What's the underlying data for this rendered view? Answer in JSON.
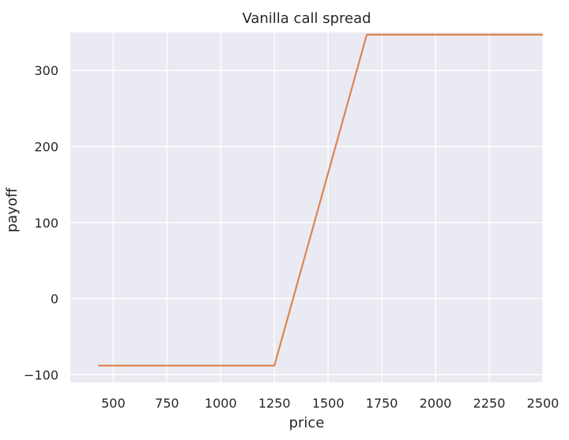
{
  "chart_data": {
    "type": "line",
    "title": "Vanilla call spread",
    "xlabel": "price",
    "ylabel": "payoff",
    "xlim": [
      300,
      2500
    ],
    "ylim": [
      -110,
      350
    ],
    "xticks": [
      500,
      750,
      1000,
      1250,
      1500,
      1750,
      2000,
      2250,
      2500
    ],
    "yticks": [
      -100,
      0,
      100,
      200,
      300
    ],
    "ytick_labels": [
      "−100",
      "0",
      "100",
      "200",
      "300"
    ],
    "grid": true,
    "background": "#eaeaf2",
    "series": [
      {
        "color": "#dd8452",
        "x": [
          430,
          1250,
          1680,
          2500
        ],
        "y": [
          -88,
          -88,
          347,
          347
        ]
      }
    ]
  }
}
